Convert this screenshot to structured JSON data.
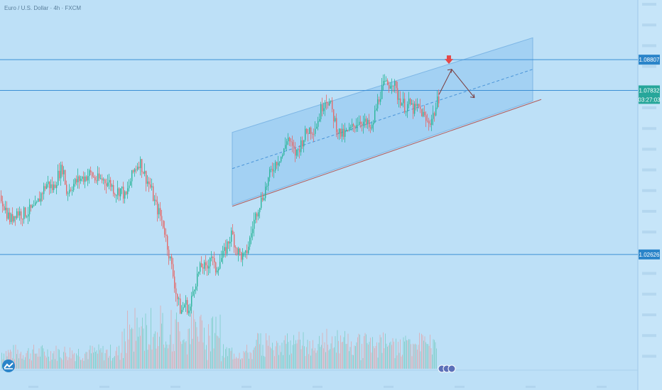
{
  "header": {
    "symbol_line": "Euro / U.S. Dollar · 4h · FXCM",
    "line2": "",
    "line3": ""
  },
  "colors": {
    "background": "#bde0f7",
    "up": "#2bb59a",
    "down": "#e46a6a",
    "level_line": "#3c8fd4",
    "channel_fill": "#8fc6f0",
    "channel_edge": "#4a94d8",
    "label_bg": "#2a84c9",
    "arrow_down": "#e54848"
  },
  "price_labels": {
    "resistance": "1.08807",
    "current": "1.07832",
    "countdown": "03:27:03",
    "support": "1.02626"
  },
  "chart_data": {
    "type": "candlestick",
    "price_range": [
      0.99,
      1.107
    ],
    "horizontal_levels": [
      1.08807,
      1.07832,
      1.02626
    ],
    "current_price": 1.07832,
    "price_path": [
      [
        0,
        1.045
      ],
      [
        8,
        1.04
      ],
      [
        14,
        1.037
      ],
      [
        22,
        1.04
      ],
      [
        30,
        1.039
      ],
      [
        40,
        1.04
      ],
      [
        50,
        1.041
      ],
      [
        58,
        1.046
      ],
      [
        66,
        1.049
      ],
      [
        74,
        1.047
      ],
      [
        82,
        1.052
      ],
      [
        88,
        1.054
      ],
      [
        93,
        1.046
      ],
      [
        100,
        1.048
      ],
      [
        110,
        1.05
      ],
      [
        120,
        1.051
      ],
      [
        126,
        1.052
      ],
      [
        134,
        1.05
      ],
      [
        144,
        1.05
      ],
      [
        154,
        1.049
      ],
      [
        162,
        1.046
      ],
      [
        170,
        1.047
      ],
      [
        176,
        1.044
      ],
      [
        182,
        1.049
      ],
      [
        188,
        1.053
      ],
      [
        196,
        1.056
      ],
      [
        204,
        1.051
      ],
      [
        212,
        1.047
      ],
      [
        218,
        1.042
      ],
      [
        224,
        1.039
      ],
      [
        230,
        1.035
      ],
      [
        236,
        1.028
      ],
      [
        242,
        1.021
      ],
      [
        248,
        1.013
      ],
      [
        254,
        1.008
      ],
      [
        260,
        1.011
      ],
      [
        266,
        1.008
      ],
      [
        272,
        1.016
      ],
      [
        278,
        1.02
      ],
      [
        284,
        1.023
      ],
      [
        290,
        1.021
      ],
      [
        296,
        1.027
      ],
      [
        302,
        1.021
      ],
      [
        308,
        1.024
      ],
      [
        314,
        1.026
      ],
      [
        320,
        1.03
      ],
      [
        326,
        1.033
      ],
      [
        332,
        1.028
      ],
      [
        338,
        1.026
      ],
      [
        344,
        1.025
      ],
      [
        350,
        1.03
      ],
      [
        356,
        1.036
      ],
      [
        362,
        1.041
      ],
      [
        368,
        1.044
      ],
      [
        374,
        1.048
      ],
      [
        380,
        1.052
      ],
      [
        386,
        1.055
      ],
      [
        392,
        1.057
      ],
      [
        398,
        1.058
      ],
      [
        404,
        1.064
      ],
      [
        410,
        1.06
      ],
      [
        416,
        1.058
      ],
      [
        422,
        1.061
      ],
      [
        428,
        1.064
      ],
      [
        434,
        1.066
      ],
      [
        440,
        1.066
      ],
      [
        446,
        1.068
      ],
      [
        452,
        1.073
      ],
      [
        458,
        1.076
      ],
      [
        464,
        1.074
      ],
      [
        470,
        1.069
      ],
      [
        476,
        1.065
      ],
      [
        482,
        1.064
      ],
      [
        488,
        1.065
      ],
      [
        494,
        1.066
      ],
      [
        500,
        1.068
      ],
      [
        506,
        1.069
      ],
      [
        512,
        1.068
      ],
      [
        518,
        1.067
      ],
      [
        522,
        1.065
      ],
      [
        528,
        1.072
      ],
      [
        534,
        1.077
      ],
      [
        540,
        1.08
      ],
      [
        546,
        1.08
      ],
      [
        552,
        1.082
      ],
      [
        558,
        1.077
      ],
      [
        564,
        1.075
      ],
      [
        570,
        1.073
      ],
      [
        576,
        1.074
      ],
      [
        582,
        1.072
      ],
      [
        588,
        1.073
      ],
      [
        594,
        1.071
      ],
      [
        600,
        1.068
      ],
      [
        606,
        1.069
      ],
      [
        612,
        1.072
      ],
      [
        618,
        1.077
      ]
    ],
    "channel": {
      "upper": [
        {
          "bar": 327,
          "price": 1.065
        },
        {
          "bar": 750,
          "price": 1.095
        }
      ],
      "lower": [
        {
          "bar": 327,
          "price": 1.042
        },
        {
          "bar": 750,
          "price": 1.075
        }
      ],
      "mid": [
        {
          "bar": 327,
          "price": 1.0535
        },
        {
          "bar": 750,
          "price": 1.085
        }
      ]
    },
    "forecast_path": [
      {
        "bar": 618,
        "price": 1.077
      },
      {
        "bar": 636,
        "price": 1.085
      },
      {
        "bar": 668,
        "price": 1.076
      }
    ],
    "volume_max": 1.0,
    "grid": false,
    "price_axis_side": "right"
  }
}
